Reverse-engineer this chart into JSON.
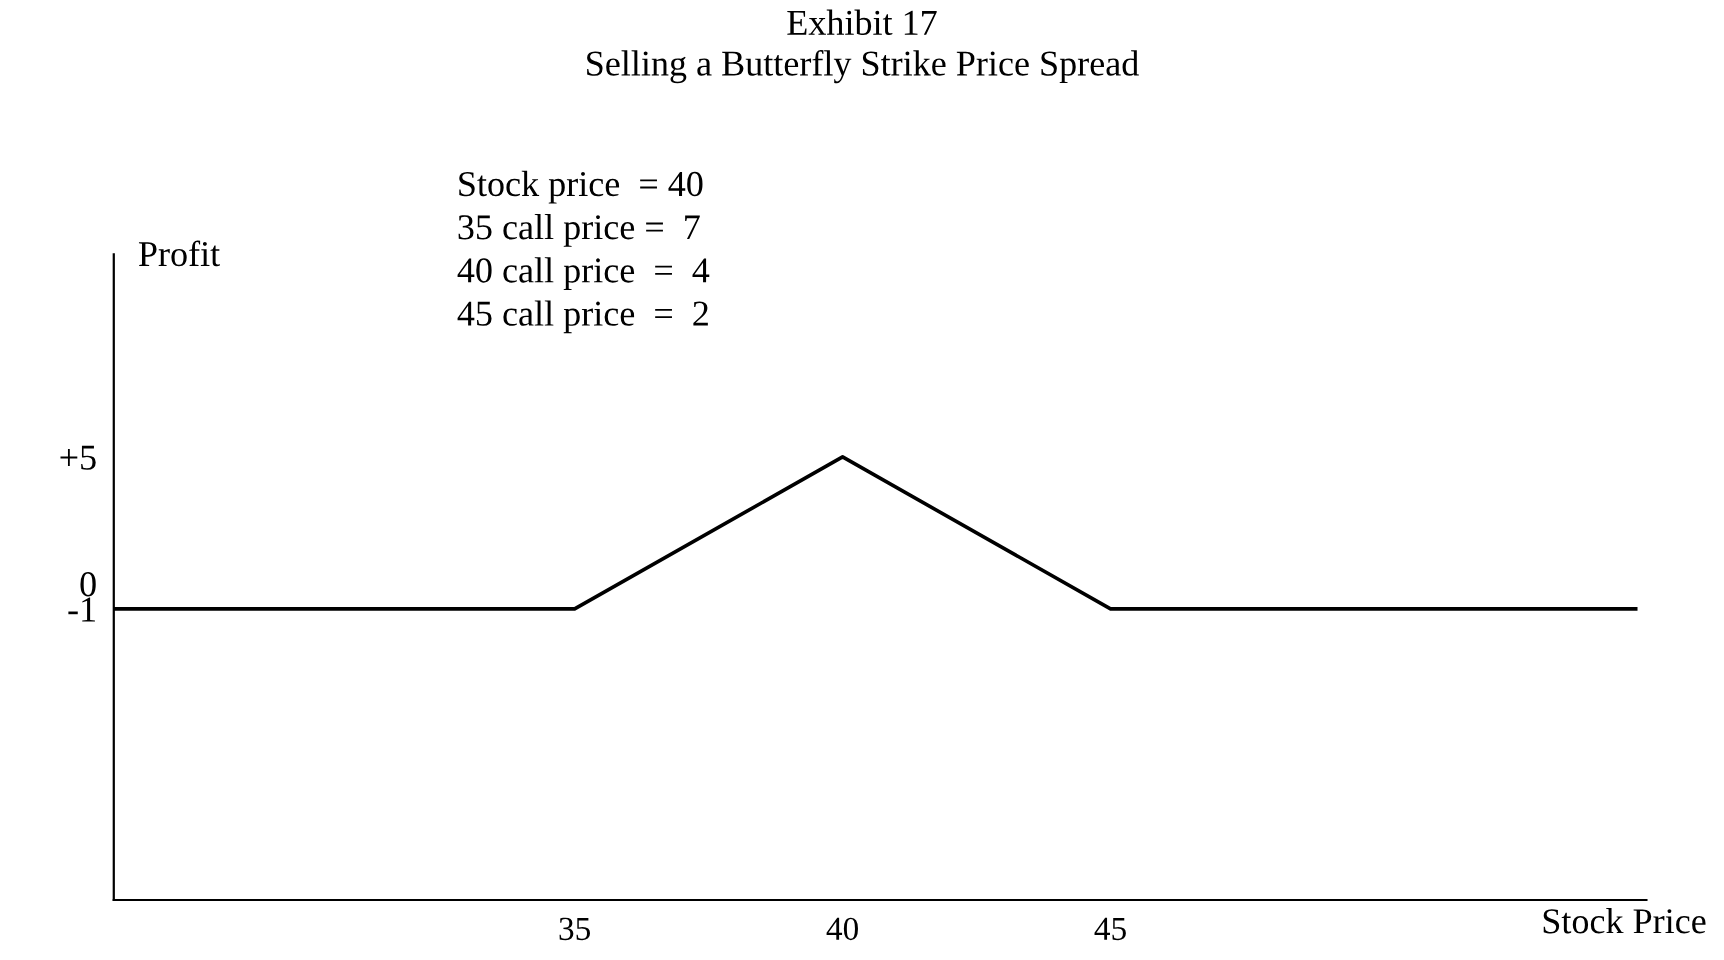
{
  "chart_data": {
    "type": "line",
    "title": "Exhibit 17\nSelling a Butterfly Strike Price Spread",
    "xlabel": "Stock Price",
    "ylabel": "Profit",
    "x": [
      26.4,
      35,
      40,
      45,
      54.8
    ],
    "series": [
      {
        "color": "#000000",
        "values": [
          -1,
          -1,
          5,
          -1,
          -1
        ]
      }
    ],
    "xlim": [
      26.4,
      55
    ],
    "xticks": [
      35,
      40,
      45
    ],
    "ylim": [
      -12.5,
      13
    ],
    "yticks": [
      {
        "value": 5,
        "label": "+5"
      },
      0,
      -1
    ],
    "annotations": [
      "Stock price  = 40",
      "35 call price =  7",
      "40 call price  =  4",
      "45 call price  =  2"
    ],
    "grid": false,
    "legend": false,
    "marker": "none",
    "line_style": "solid"
  }
}
